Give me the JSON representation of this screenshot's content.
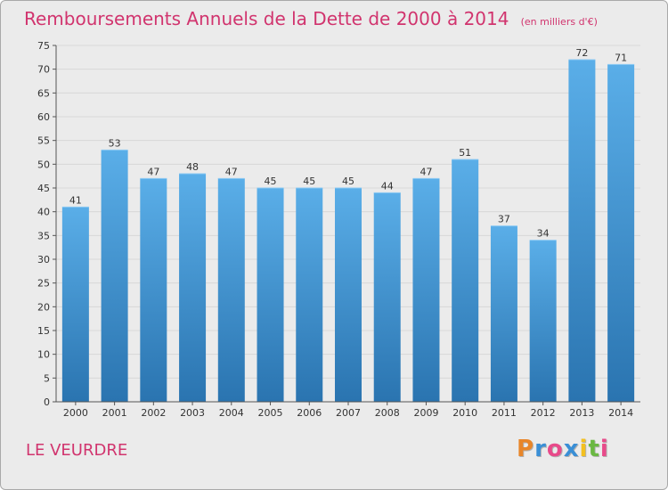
{
  "header": {
    "title": "Remboursements Annuels de la Dette de 2000 à 2014",
    "unit": "(en milliers d'€)"
  },
  "footer": {
    "commune": "LE VEURDRE",
    "logo": [
      "P",
      "r",
      "o",
      "x",
      "i",
      "t",
      "i"
    ]
  },
  "colors": {
    "title": "#d1346e",
    "bar_top": "#5aaee8",
    "bar_bottom": "#2a74b0",
    "grid": "#d8d8d8",
    "background": "#ebebeb",
    "logo": [
      "#e8862a",
      "#3a8fd6",
      "#e84a8a",
      "#3a8fd6",
      "#f3c020",
      "#6ab842",
      "#e84a8a"
    ]
  },
  "chart_data": {
    "type": "bar",
    "title": "Remboursements Annuels de la Dette de 2000 à 2014",
    "xlabel": "",
    "ylabel": "",
    "ylim": [
      0,
      75
    ],
    "yticks": [
      0,
      5,
      10,
      15,
      20,
      25,
      30,
      35,
      40,
      45,
      50,
      55,
      60,
      65,
      70,
      75
    ],
    "grid": true,
    "categories": [
      "2000",
      "2001",
      "2002",
      "2003",
      "2004",
      "2005",
      "2006",
      "2007",
      "2008",
      "2009",
      "2010",
      "2011",
      "2012",
      "2013",
      "2014"
    ],
    "values": [
      41,
      53,
      47,
      48,
      47,
      45,
      45,
      45,
      44,
      47,
      51,
      37,
      34,
      72,
      71
    ]
  }
}
